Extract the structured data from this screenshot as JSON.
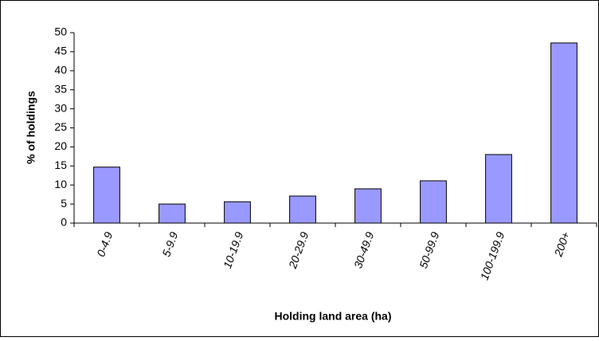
{
  "chart_data": {
    "type": "bar",
    "x_label": "Holding land area (ha)",
    "y_label": "% of holdings",
    "categories": [
      "0-4.9",
      "5-9.9",
      "10-19.9",
      "20-29.9",
      "30-49.9",
      "50-99.9",
      "100-199.9",
      "200+"
    ],
    "values": [
      14.7,
      5.0,
      5.6,
      7.1,
      9.0,
      11.1,
      18.0,
      47.3
    ],
    "color": "#9999ff",
    "ylim": [
      0,
      50
    ],
    "yticks": [
      0,
      5,
      10,
      15,
      20,
      25,
      30,
      35,
      40,
      45,
      50
    ],
    "grid": false
  }
}
